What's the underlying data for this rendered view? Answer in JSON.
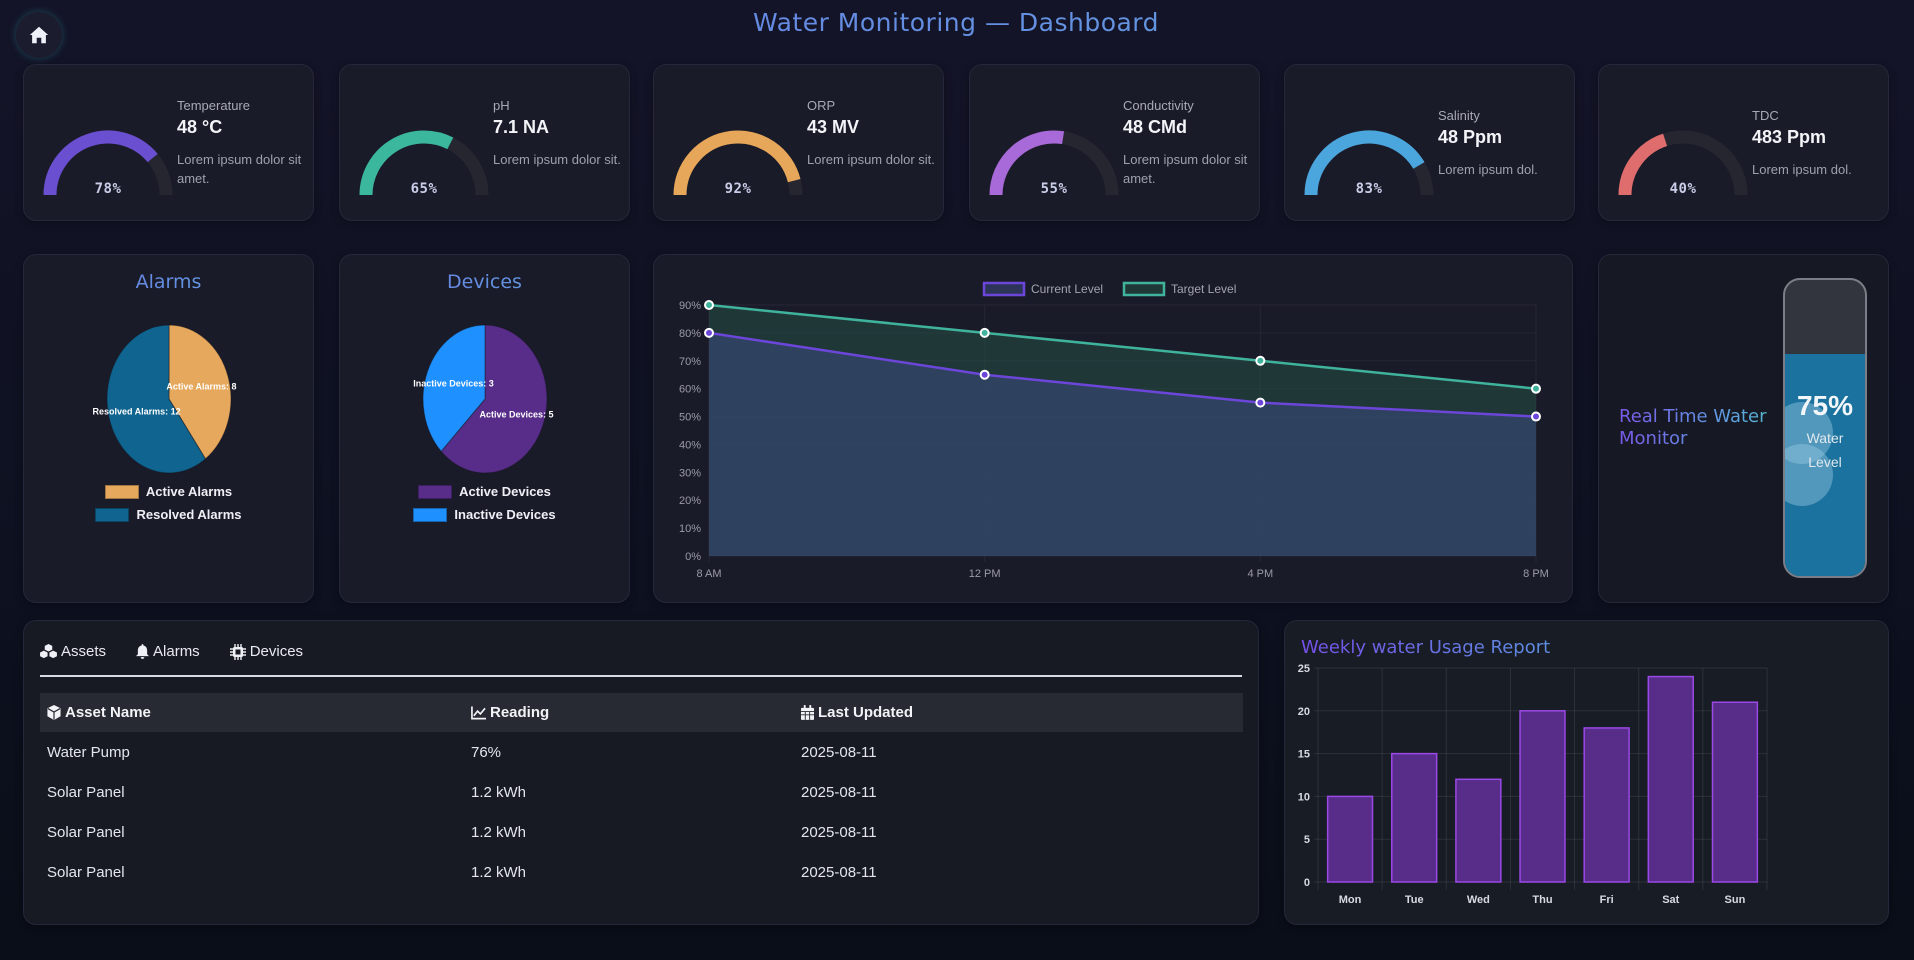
{
  "header": {
    "title": "Water Monitoring — Dashboard",
    "home_icon": "home-icon"
  },
  "sensors": [
    {
      "label": "Temperature",
      "value": "48 °C",
      "desc": "Lorem ipsum dolor sit amet.",
      "percent": 78,
      "percent_label": "78%",
      "color": "#6a4fd0"
    },
    {
      "label": "pH",
      "value": "7.1 NA",
      "desc": "Lorem ipsum dolor sit.",
      "percent": 65,
      "percent_label": "65%",
      "color": "#3ab79d"
    },
    {
      "label": "ORP",
      "value": "43 MV",
      "desc": "Lorem ipsum dolor sit.",
      "percent": 92,
      "percent_label": "92%",
      "color": "#e7a75a"
    },
    {
      "label": "Conductivity",
      "value": "48 CMd",
      "desc": "Lorem ipsum dolor sit amet.",
      "percent": 55,
      "percent_label": "55%",
      "color": "#a96ad9"
    },
    {
      "label": "Salinity",
      "value": "48 Ppm",
      "desc": "Lorem ipsum dol.",
      "percent": 83,
      "percent_label": "83%",
      "color": "#4ba6dd"
    },
    {
      "label": "TDC",
      "value": "483 Ppm",
      "desc": "Lorem ipsum dol.",
      "percent": 40,
      "percent_label": "40%",
      "color": "#df6d6d"
    }
  ],
  "gauge_track_color": "#252630",
  "chart_data": [
    {
      "type": "pie",
      "title": "Alarms",
      "categories": [
        "Active Alarms",
        "Resolved Alarms"
      ],
      "values": [
        8,
        12
      ],
      "data_labels": [
        "Active Alarms: 8",
        "Resolved Alarms: 12"
      ],
      "colors": [
        "#e6a85d",
        "#0f6490"
      ],
      "legend": "bottom"
    },
    {
      "type": "pie",
      "title": "Devices",
      "categories": [
        "Active Devices",
        "Inactive Devices"
      ],
      "values": [
        5,
        3
      ],
      "data_labels": [
        "Active Devices: 5",
        "Inactive Devices: 3"
      ],
      "colors": [
        "#582d8a",
        "#1e90ff"
      ],
      "legend": "bottom"
    },
    {
      "type": "area",
      "title": "",
      "x": [
        "8 AM",
        "12 PM",
        "4 PM",
        "8 PM"
      ],
      "series": [
        {
          "name": "Current Level",
          "values": [
            80,
            65,
            55,
            50
          ],
          "color": "#6b46d9",
          "fill": "rgba(56,72,120,0.6)"
        },
        {
          "name": "Target Level",
          "values": [
            90,
            80,
            70,
            60
          ],
          "color": "#3fb39c",
          "fill": "rgba(38,78,70,0.55)"
        }
      ],
      "yticks": [
        "0%",
        "10%",
        "20%",
        "30%",
        "40%",
        "50%",
        "60%",
        "70%",
        "80%",
        "90%"
      ],
      "ylim": [
        0,
        90
      ],
      "xlabel": "",
      "ylabel": "",
      "grid": true,
      "legend": "top"
    },
    {
      "type": "bar",
      "title": "Weekly water Usage Report",
      "categories": [
        "Mon",
        "Tue",
        "Wed",
        "Thu",
        "Fri",
        "Sat",
        "Sun"
      ],
      "values": [
        10,
        15,
        12,
        20,
        18,
        24,
        21
      ],
      "yticks": [
        "0",
        "5",
        "10",
        "15",
        "20",
        "25"
      ],
      "ylim": [
        0,
        25
      ],
      "xlabel": "",
      "ylabel": "",
      "grid": true,
      "color": "#582d8a",
      "border_color": "#9a48e6"
    }
  ],
  "water_monitor": {
    "title": "Real Time Water Monitor",
    "level_percent": 75,
    "level_label": "75%",
    "caption_line1": "Water",
    "caption_line2": "Level"
  },
  "tabs": [
    {
      "label": "Assets",
      "icon": "cubes-icon"
    },
    {
      "label": "Alarms",
      "icon": "bell-icon"
    },
    {
      "label": "Devices",
      "icon": "chip-icon"
    }
  ],
  "table": {
    "columns": [
      {
        "label": "Asset Name",
        "icon": "cube-icon"
      },
      {
        "label": "Reading",
        "icon": "chart-line-icon"
      },
      {
        "label": "Last Updated",
        "icon": "calendar-icon"
      }
    ],
    "rows": [
      [
        "Water Pump",
        "76%",
        "2025-08-11"
      ],
      [
        "Solar Panel",
        "1.2 kWh",
        "2025-08-11"
      ],
      [
        "Solar Panel",
        "1.2 kWh",
        "2025-08-11"
      ],
      [
        "Solar Panel",
        "1.2 kWh",
        "2025-08-11"
      ]
    ]
  }
}
